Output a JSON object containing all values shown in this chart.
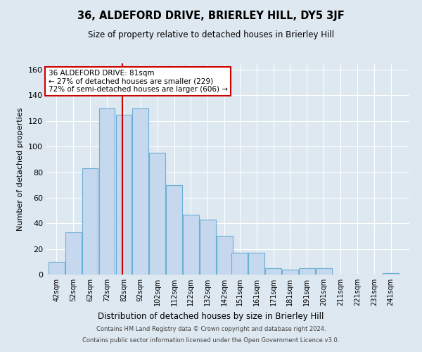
{
  "title": "36, ALDEFORD DRIVE, BRIERLEY HILL, DY5 3JF",
  "subtitle": "Size of property relative to detached houses in Brierley Hill",
  "xlabel": "Distribution of detached houses by size in Brierley Hill",
  "ylabel": "Number of detached properties",
  "annotation_title": "36 ALDEFORD DRIVE: 81sqm",
  "annotation_line1": "← 27% of detached houses are smaller (229)",
  "annotation_line2": "72% of semi-detached houses are larger (606) →",
  "bar_color": "#c5d8ee",
  "bar_edge_color": "#6baed6",
  "vline_color": "#cc0000",
  "vline_x": 81,
  "annotation_box_color": "#ffffff",
  "annotation_box_edge": "#cc0000",
  "bg_color": "#dde8f0",
  "plot_bg_color": "#dde8f0",
  "grid_color": "#ffffff",
  "footer_line1": "Contains HM Land Registry data © Crown copyright and database right 2024.",
  "footer_line2": "Contains public sector information licensed under the Open Government Licence v3.0.",
  "categories": [
    42,
    52,
    62,
    72,
    82,
    92,
    102,
    112,
    122,
    132,
    142,
    151,
    161,
    171,
    181,
    191,
    201,
    211,
    221,
    231,
    241
  ],
  "values": [
    10,
    33,
    83,
    130,
    125,
    130,
    95,
    70,
    47,
    43,
    30,
    17,
    17,
    5,
    4,
    5,
    5,
    0,
    0,
    0,
    1
  ],
  "ylim": [
    0,
    165
  ],
  "yticks": [
    0,
    20,
    40,
    60,
    80,
    100,
    120,
    140,
    160
  ],
  "figsize": [
    6.0,
    5.0
  ],
  "dpi": 100
}
